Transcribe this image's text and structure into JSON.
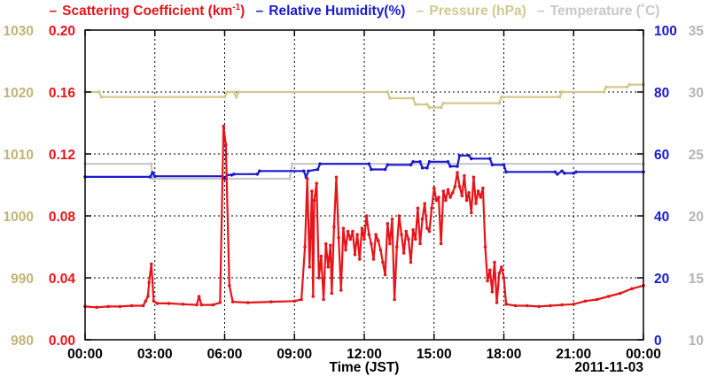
{
  "chart_data": {
    "type": "line",
    "legend": [
      {
        "key": "sc",
        "pre": "Scattering Coefficient (km",
        "sup": "-1",
        "post": ")",
        "color": "#e8141a"
      },
      {
        "key": "rh",
        "pre": "Relative Humidity(%)",
        "sup": "",
        "post": "",
        "color": "#1a1ad0"
      },
      {
        "key": "p",
        "pre": "Pressure (hPa)",
        "sup": "",
        "post": "",
        "color": "#d2c98f"
      },
      {
        "key": "t",
        "pre": "Temperature (˚C)",
        "sup": "",
        "post": "",
        "color": "#c8c8c8"
      }
    ],
    "xlabel": "Time (JST)",
    "date_label": "2011-11-03",
    "x_ticks": [
      "00:00",
      "03:00",
      "06:00",
      "09:00",
      "12:00",
      "15:00",
      "18:00",
      "21:00",
      "00:00"
    ],
    "axes": {
      "pressure": {
        "ticks": [
          "1030",
          "1020",
          "1010",
          "1000",
          "990",
          "980"
        ],
        "range": [
          980,
          1030
        ],
        "color": "#c2b477"
      },
      "scattering": {
        "ticks": [
          "0.20",
          "0.16",
          "0.12",
          "0.08",
          "0.04",
          "0.00"
        ],
        "range": [
          0,
          0.2
        ],
        "color": "#e8141a"
      },
      "humidity": {
        "ticks": [
          "100",
          "80",
          "60",
          "40",
          "20",
          "0"
        ],
        "range": [
          0,
          100
        ],
        "color": "#1a1ad0"
      },
      "temperature": {
        "ticks": [
          "35",
          "30",
          "25",
          "20",
          "15",
          "10"
        ],
        "range": [
          10,
          35
        ],
        "color": "#b4b4b4"
      }
    },
    "xlim": [
      0,
      24
    ],
    "grid": true,
    "series": [
      {
        "name": "Pressure (hPa)",
        "axis": "pressure",
        "color": "#d2c98f",
        "points": [
          [
            0,
            1020
          ],
          [
            0.6,
            1020
          ],
          [
            0.7,
            1019.2
          ],
          [
            6.0,
            1019.2
          ],
          [
            6.1,
            1020
          ],
          [
            6.4,
            1020
          ],
          [
            6.5,
            1019.2
          ],
          [
            6.6,
            1020
          ],
          [
            13.0,
            1020
          ],
          [
            13.1,
            1019
          ],
          [
            14.1,
            1019
          ],
          [
            14.2,
            1018
          ],
          [
            14.7,
            1018
          ],
          [
            14.8,
            1017.5
          ],
          [
            15.3,
            1017.5
          ],
          [
            15.4,
            1018.2
          ],
          [
            17.8,
            1018.2
          ],
          [
            17.9,
            1019.2
          ],
          [
            20.4,
            1019.2
          ],
          [
            20.5,
            1020
          ],
          [
            22.3,
            1020
          ],
          [
            22.4,
            1020.8
          ],
          [
            23.3,
            1020.8
          ],
          [
            23.4,
            1021.2
          ],
          [
            24,
            1021.2
          ]
        ]
      },
      {
        "name": "Temperature (˚C)",
        "axis": "temperature",
        "color": "#c8c8c8",
        "points": [
          [
            0,
            24.2
          ],
          [
            2.85,
            24.2
          ],
          [
            2.9,
            23
          ],
          [
            8.8,
            23
          ],
          [
            8.9,
            24.2
          ],
          [
            24,
            24.2
          ]
        ]
      },
      {
        "name": "Relative Humidity(%)",
        "axis": "humidity",
        "color": "#1a1ad0",
        "points": [
          [
            0,
            52.6
          ],
          [
            2.8,
            52.6
          ],
          [
            2.9,
            54
          ],
          [
            3.0,
            52.8
          ],
          [
            5.9,
            52.8
          ],
          [
            6.0,
            52
          ],
          [
            6.1,
            53.2
          ],
          [
            6.3,
            53.2
          ],
          [
            6.4,
            53.5
          ],
          [
            7.4,
            53.5
          ],
          [
            7.5,
            54.5
          ],
          [
            9.4,
            54.5
          ],
          [
            9.5,
            52.5
          ],
          [
            9.6,
            54.5
          ],
          [
            10.0,
            55
          ],
          [
            10.1,
            56.8
          ],
          [
            12.2,
            56.8
          ],
          [
            12.3,
            55
          ],
          [
            12.9,
            55
          ],
          [
            13.0,
            56.5
          ],
          [
            14.0,
            56.5
          ],
          [
            14.1,
            57.5
          ],
          [
            14.4,
            57.5
          ],
          [
            14.5,
            55.5
          ],
          [
            14.7,
            55.5
          ],
          [
            14.8,
            57.5
          ],
          [
            15.6,
            57.5
          ],
          [
            15.7,
            56
          ],
          [
            16.0,
            56
          ],
          [
            16.1,
            59.5
          ],
          [
            16.5,
            59.5
          ],
          [
            16.6,
            58.5
          ],
          [
            17.4,
            58.5
          ],
          [
            17.5,
            56.5
          ],
          [
            18.0,
            56.5
          ],
          [
            18.1,
            54.2
          ],
          [
            20.2,
            54.2
          ],
          [
            20.3,
            53.5
          ],
          [
            20.5,
            54.5
          ],
          [
            20.6,
            53.8
          ],
          [
            21.0,
            53.8
          ],
          [
            21.1,
            54.2
          ],
          [
            24,
            54.2
          ]
        ]
      },
      {
        "name": "Scattering Coefficient (km-1)",
        "axis": "scattering",
        "color": "#e8141a",
        "points": [
          [
            0,
            0.0215
          ],
          [
            0.5,
            0.021
          ],
          [
            1.0,
            0.0215
          ],
          [
            1.5,
            0.0215
          ],
          [
            2.0,
            0.022
          ],
          [
            2.5,
            0.022
          ],
          [
            2.6,
            0.025
          ],
          [
            2.7,
            0.028
          ],
          [
            2.75,
            0.037
          ],
          [
            2.85,
            0.049
          ],
          [
            2.95,
            0.025
          ],
          [
            3.1,
            0.0235
          ],
          [
            3.6,
            0.0235
          ],
          [
            4.2,
            0.023
          ],
          [
            4.8,
            0.0225
          ],
          [
            4.9,
            0.028
          ],
          [
            5.0,
            0.0225
          ],
          [
            5.5,
            0.0225
          ],
          [
            5.8,
            0.024
          ],
          [
            5.95,
            0.138
          ],
          [
            6.05,
            0.126
          ],
          [
            6.2,
            0.035
          ],
          [
            6.35,
            0.0245
          ],
          [
            7.0,
            0.024
          ],
          [
            8.0,
            0.0245
          ],
          [
            9.0,
            0.025
          ],
          [
            9.3,
            0.026
          ],
          [
            9.45,
            0.06
          ],
          [
            9.55,
            0.104
          ],
          [
            9.65,
            0.047
          ],
          [
            9.75,
            0.096
          ],
          [
            9.8,
            0.028
          ],
          [
            9.85,
            0.09
          ],
          [
            9.95,
            0.101
          ],
          [
            10.05,
            0.04
          ],
          [
            10.15,
            0.054
          ],
          [
            10.25,
            0.026
          ],
          [
            10.35,
            0.062
          ],
          [
            10.45,
            0.047
          ],
          [
            10.55,
            0.061
          ],
          [
            10.6,
            0.03
          ],
          [
            10.7,
            0.073
          ],
          [
            10.8,
            0.105
          ],
          [
            10.9,
            0.066
          ],
          [
            11.0,
            0.032
          ],
          [
            11.1,
            0.072
          ],
          [
            11.2,
            0.058
          ],
          [
            11.3,
            0.07
          ],
          [
            11.4,
            0.065
          ],
          [
            11.5,
            0.07
          ],
          [
            11.6,
            0.055
          ],
          [
            11.7,
            0.068
          ],
          [
            11.8,
            0.052
          ],
          [
            11.9,
            0.072
          ],
          [
            12.0,
            0.065
          ],
          [
            12.1,
            0.08
          ],
          [
            12.2,
            0.068
          ],
          [
            12.3,
            0.062
          ],
          [
            12.4,
            0.052
          ],
          [
            12.5,
            0.068
          ],
          [
            12.6,
            0.064
          ],
          [
            12.7,
            0.058
          ],
          [
            12.8,
            0.05
          ],
          [
            12.9,
            0.042
          ],
          [
            13.0,
            0.075
          ],
          [
            13.1,
            0.062
          ],
          [
            13.2,
            0.078
          ],
          [
            13.3,
            0.026
          ],
          [
            13.4,
            0.06
          ],
          [
            13.5,
            0.08
          ],
          [
            13.6,
            0.068
          ],
          [
            13.7,
            0.056
          ],
          [
            13.8,
            0.07
          ],
          [
            13.9,
            0.065
          ],
          [
            14.0,
            0.05
          ],
          [
            14.1,
            0.071
          ],
          [
            14.2,
            0.065
          ],
          [
            14.3,
            0.085
          ],
          [
            14.4,
            0.062
          ],
          [
            14.5,
            0.078
          ],
          [
            14.6,
            0.088
          ],
          [
            14.7,
            0.072
          ],
          [
            14.8,
            0.07
          ],
          [
            14.9,
            0.085
          ],
          [
            15.0,
            0.098
          ],
          [
            15.1,
            0.09
          ],
          [
            15.2,
            0.092
          ],
          [
            15.3,
            0.062
          ],
          [
            15.4,
            0.096
          ],
          [
            15.5,
            0.09
          ],
          [
            15.6,
            0.097
          ],
          [
            15.7,
            0.092
          ],
          [
            15.8,
            0.095
          ],
          [
            15.9,
            0.099
          ],
          [
            16.0,
            0.108
          ],
          [
            16.1,
            0.099
          ],
          [
            16.2,
            0.093
          ],
          [
            16.3,
            0.106
          ],
          [
            16.4,
            0.09
          ],
          [
            16.5,
            0.095
          ],
          [
            16.6,
            0.082
          ],
          [
            16.7,
            0.105
          ],
          [
            16.8,
            0.088
          ],
          [
            16.9,
            0.096
          ],
          [
            17.0,
            0.092
          ],
          [
            17.1,
            0.098
          ],
          [
            17.2,
            0.06
          ],
          [
            17.3,
            0.038
          ],
          [
            17.4,
            0.045
          ],
          [
            17.5,
            0.031
          ],
          [
            17.6,
            0.05
          ],
          [
            17.7,
            0.024
          ],
          [
            17.8,
            0.043
          ],
          [
            17.9,
            0.047
          ],
          [
            18.0,
            0.04
          ],
          [
            18.1,
            0.023
          ],
          [
            18.5,
            0.022
          ],
          [
            19.0,
            0.022
          ],
          [
            19.5,
            0.0215
          ],
          [
            20.0,
            0.022
          ],
          [
            20.5,
            0.0225
          ],
          [
            21.0,
            0.023
          ],
          [
            21.5,
            0.025
          ],
          [
            22.0,
            0.026
          ],
          [
            22.5,
            0.028
          ],
          [
            23.0,
            0.03
          ],
          [
            23.5,
            0.033
          ],
          [
            24,
            0.035
          ]
        ]
      }
    ]
  }
}
